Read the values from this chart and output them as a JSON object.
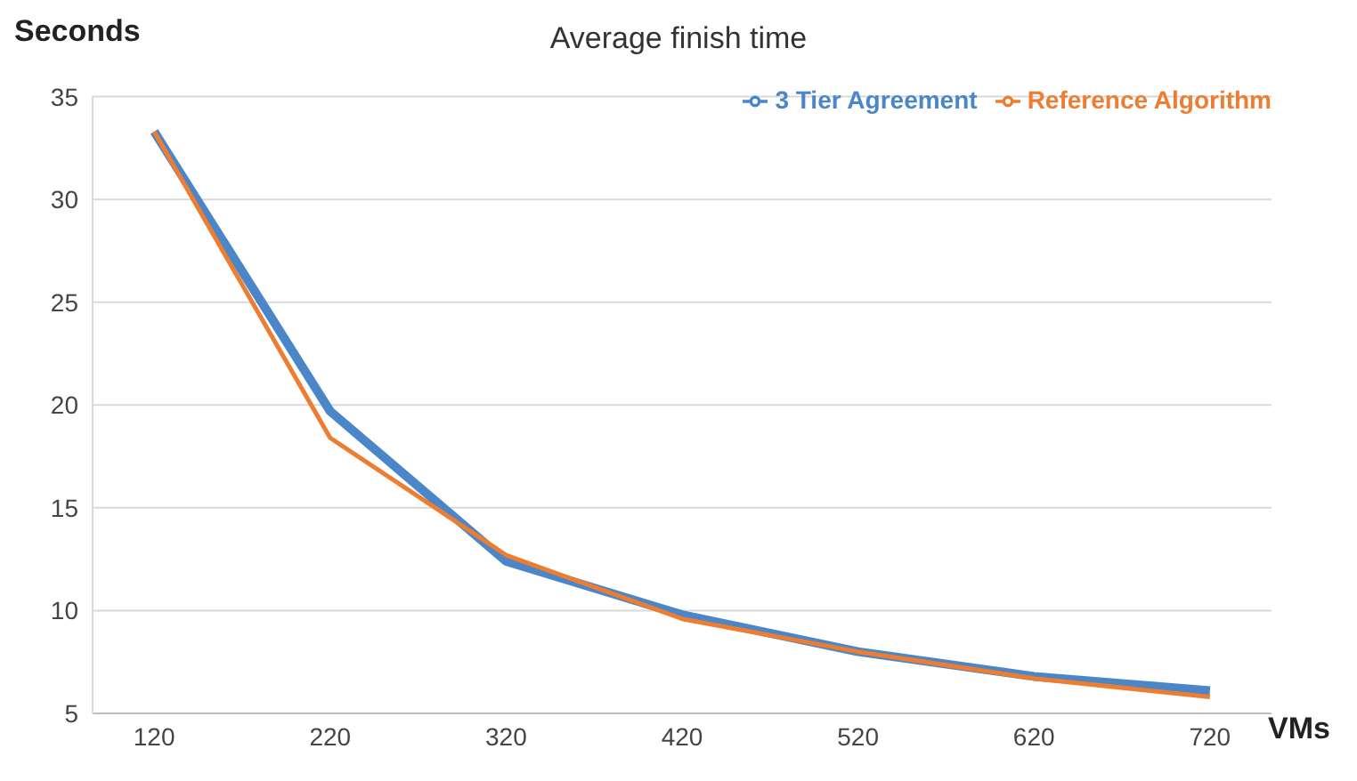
{
  "chart_data": {
    "type": "line",
    "title": "Average finish time",
    "ylabel": "Seconds",
    "xlabel": "VMs",
    "categories": [
      "120",
      "220",
      "320",
      "420",
      "520",
      "620",
      "720"
    ],
    "series": [
      {
        "name": "3 Tier Agreement",
        "color": "#4a86c8",
        "values": [
          33.3,
          19.7,
          12.4,
          9.8,
          8.0,
          6.8,
          6.1
        ]
      },
      {
        "name": "Reference Algorithm",
        "color": "#ed7d31",
        "values": [
          33.3,
          18.4,
          12.7,
          9.6,
          8.0,
          6.7,
          5.8
        ]
      }
    ],
    "ylim": [
      5,
      35
    ],
    "yticks": [
      5,
      10,
      15,
      20,
      25,
      30,
      35
    ],
    "grid": "y",
    "legend": "top right",
    "marker": "none",
    "line_style": "solid"
  }
}
